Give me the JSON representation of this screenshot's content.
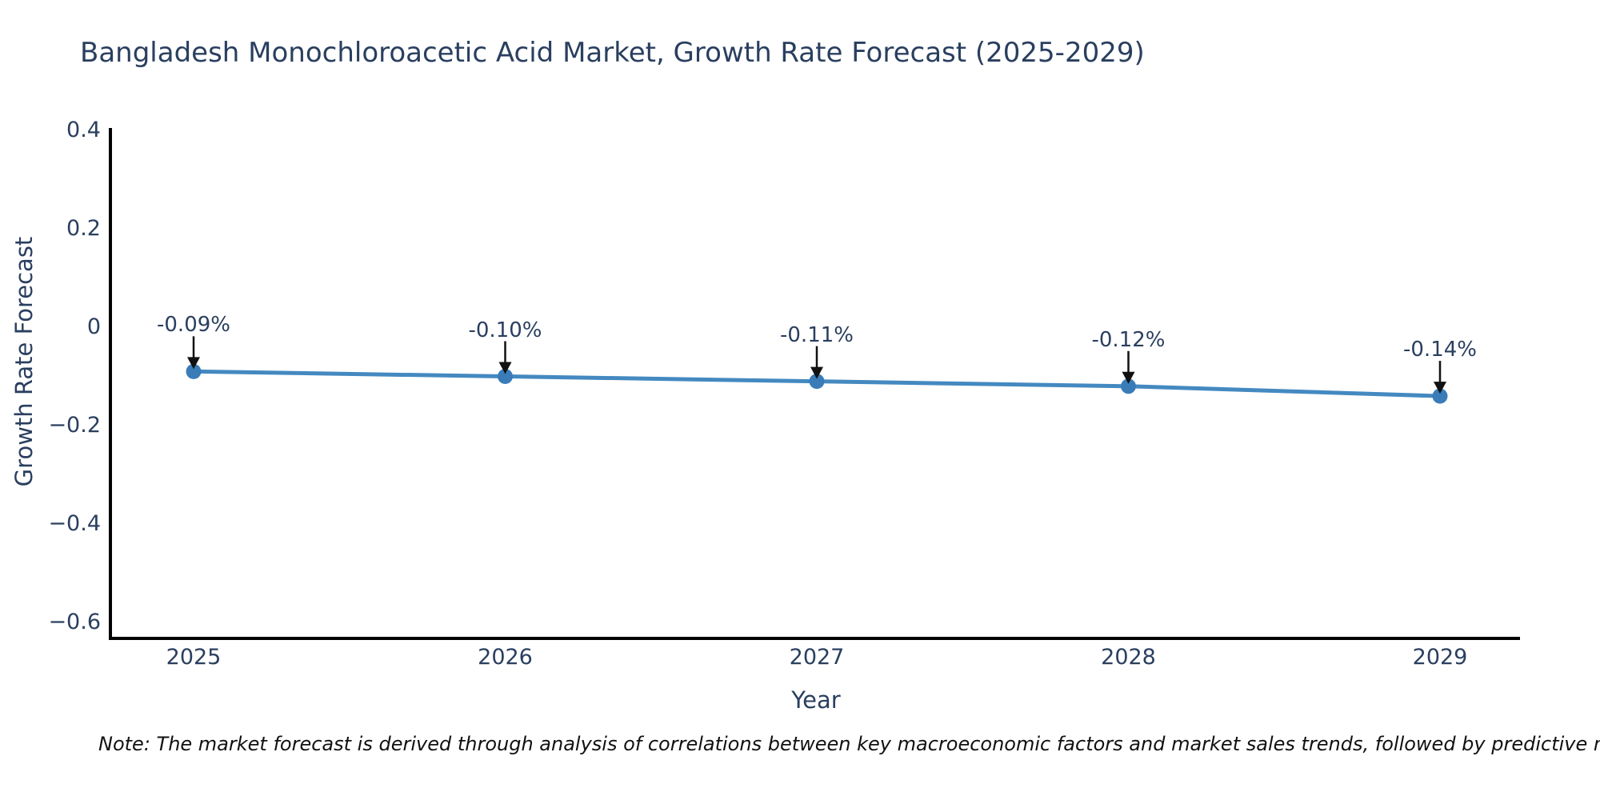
{
  "chart_data": {
    "type": "line",
    "title": "Bangladesh Monochloroacetic Acid Market, Growth Rate Forecast (2025-2029)",
    "xlabel": "Year",
    "ylabel": "Growth Rate Forecast",
    "x": [
      2025,
      2026,
      2027,
      2028,
      2029
    ],
    "y": [
      -0.09,
      -0.1,
      -0.11,
      -0.12,
      -0.14
    ],
    "point_labels": [
      "-0.09%",
      "-0.10%",
      "-0.11%",
      "-0.12%",
      "-0.14%"
    ],
    "xtick_labels": [
      "2025",
      "2026",
      "2027",
      "2028",
      "2029"
    ],
    "ytick_values": [
      0.4,
      0.2,
      0,
      -0.2,
      -0.4,
      -0.6
    ],
    "ytick_labels": [
      "0.4",
      "0.2",
      "0",
      "−0.2",
      "−0.4",
      "−0.6"
    ],
    "ylim": [
      -0.64,
      0.4
    ],
    "grid": false,
    "legend_position": "none",
    "line_color": "#4489c0",
    "marker_color": "#3a7cb8",
    "arrow_color": "#111111",
    "text_color": "#2a3f5f",
    "axis_line_color": "#000000"
  },
  "note": {
    "text": "Note: The market forecast is derived through analysis of correlations between key macroeconomic factors and market sales trends, followed by predictive modeling to project future sa"
  }
}
